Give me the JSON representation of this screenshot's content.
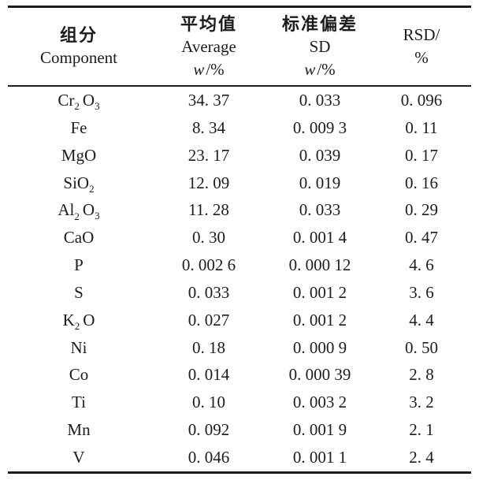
{
  "page": {
    "background": "#ffffff",
    "text_color": "#1c1c1c",
    "rule_color": "#1c1c1c"
  },
  "table": {
    "header": {
      "component": {
        "zh": "组分",
        "en": "Component"
      },
      "average": {
        "zh": "平均值",
        "en": "Average",
        "unit_var": "w",
        "unit_rest": "/%"
      },
      "sd": {
        "zh": "标准偏差",
        "en": "SD",
        "unit_var": "w",
        "unit_rest": "/%"
      },
      "rsd": {
        "line1": "RSD/",
        "line2": "%"
      }
    },
    "rows": [
      {
        "component": [
          {
            "t": "Cr"
          },
          {
            "t": "2",
            "sub": true
          },
          {
            "t": "O"
          },
          {
            "t": "3",
            "sub": true
          }
        ],
        "avg": "34. 37",
        "sd": "0. 033",
        "rsd": "0. 096"
      },
      {
        "component": [
          {
            "t": "Fe"
          }
        ],
        "avg": "8. 34",
        "sd": "0. 009 3",
        "rsd": "0. 11"
      },
      {
        "component": [
          {
            "t": "MgO"
          }
        ],
        "avg": "23. 17",
        "sd": "0. 039",
        "rsd": "0. 17"
      },
      {
        "component": [
          {
            "t": "SiO"
          },
          {
            "t": "2",
            "sub": true
          }
        ],
        "avg": "12. 09",
        "sd": "0. 019",
        "rsd": "0. 16"
      },
      {
        "component": [
          {
            "t": "Al"
          },
          {
            "t": "2",
            "sub": true
          },
          {
            "t": "O"
          },
          {
            "t": "3",
            "sub": true
          }
        ],
        "avg": "11. 28",
        "sd": "0. 033",
        "rsd": "0. 29"
      },
      {
        "component": [
          {
            "t": "CaO"
          }
        ],
        "avg": "0. 30",
        "sd": "0. 001 4",
        "rsd": "0. 47"
      },
      {
        "component": [
          {
            "t": "P"
          }
        ],
        "avg": "0. 002 6",
        "sd": "0. 000 12",
        "rsd": "4. 6"
      },
      {
        "component": [
          {
            "t": "S"
          }
        ],
        "avg": "0. 033",
        "sd": "0. 001 2",
        "rsd": "3. 6"
      },
      {
        "component": [
          {
            "t": "K"
          },
          {
            "t": "2",
            "sub": true
          },
          {
            "t": "O"
          }
        ],
        "avg": "0. 027",
        "sd": "0. 001 2",
        "rsd": "4. 4"
      },
      {
        "component": [
          {
            "t": "Ni"
          }
        ],
        "avg": "0. 18",
        "sd": "0. 000 9",
        "rsd": "0. 50"
      },
      {
        "component": [
          {
            "t": "Co"
          }
        ],
        "avg": "0. 014",
        "sd": "0. 000 39",
        "rsd": "2. 8"
      },
      {
        "component": [
          {
            "t": "Ti"
          }
        ],
        "avg": "0. 10",
        "sd": "0. 003 2",
        "rsd": "3. 2"
      },
      {
        "component": [
          {
            "t": "Mn"
          }
        ],
        "avg": "0. 092",
        "sd": "0. 001 9",
        "rsd": "2. 1"
      },
      {
        "component": [
          {
            "t": "V"
          }
        ],
        "avg": "0. 046",
        "sd": "0. 001 1",
        "rsd": "2. 4"
      }
    ]
  },
  "chart_data": {
    "type": "table",
    "columns": [
      "Component",
      "Average w/%",
      "SD w/%",
      "RSD/%"
    ],
    "rows": [
      [
        "Cr2O3",
        34.37,
        0.033,
        0.096
      ],
      [
        "Fe",
        8.34,
        0.0093,
        0.11
      ],
      [
        "MgO",
        23.17,
        0.039,
        0.17
      ],
      [
        "SiO2",
        12.09,
        0.019,
        0.16
      ],
      [
        "Al2O3",
        11.28,
        0.033,
        0.29
      ],
      [
        "CaO",
        0.3,
        0.0014,
        0.47
      ],
      [
        "P",
        0.0026,
        0.00012,
        4.6
      ],
      [
        "S",
        0.033,
        0.0012,
        3.6
      ],
      [
        "K2O",
        0.027,
        0.0012,
        4.4
      ],
      [
        "Ni",
        0.18,
        0.0009,
        0.5
      ],
      [
        "Co",
        0.014,
        0.00039,
        2.8
      ],
      [
        "Ti",
        0.1,
        0.0032,
        3.2
      ],
      [
        "Mn",
        0.092,
        0.0019,
        2.1
      ],
      [
        "V",
        0.046,
        0.0011,
        2.4
      ]
    ]
  }
}
